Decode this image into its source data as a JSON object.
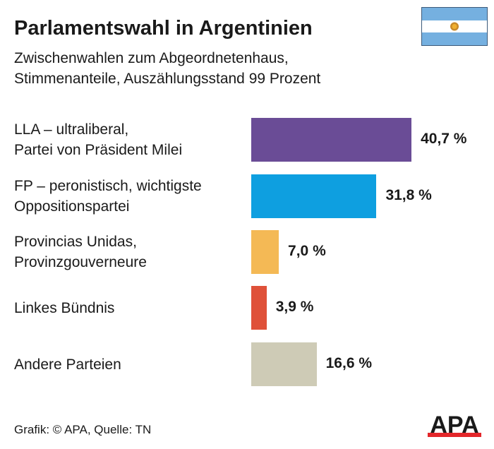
{
  "header": {
    "title": "Parlamentswahl in Argentinien",
    "subtitle_line1": "Zwischenwahlen zum Abgeordnetenhaus,",
    "subtitle_line2": "Stimmenanteile, Auszählungsstand 99 Prozent"
  },
  "footer": {
    "source": "Grafik: © APA, Quelle: TN",
    "logo": "APA"
  },
  "flag": "argentina-flag",
  "chart_data": {
    "type": "bar",
    "orientation": "horizontal",
    "categories": [
      [
        "LLA – ultraliberal,",
        "Partei von Präsident Milei"
      ],
      [
        "FP – peronistisch, wichtigste",
        "Oppositionspartei"
      ],
      [
        "Provincias Unidas,",
        "Provinzgouverneure"
      ],
      [
        "Linkes Bündnis"
      ],
      [
        "Andere Parteien"
      ]
    ],
    "values": [
      40.7,
      31.8,
      7.0,
      3.9,
      16.6
    ],
    "data_labels": [
      "40,7 %",
      "31,8 %",
      "7,0 %",
      "3,9 %",
      "16,6 %"
    ],
    "colors": [
      "#6a4c96",
      "#0e9fe0",
      "#f4b955",
      "#df5139",
      "#cecbb6"
    ],
    "grid": false,
    "legend": "none"
  }
}
